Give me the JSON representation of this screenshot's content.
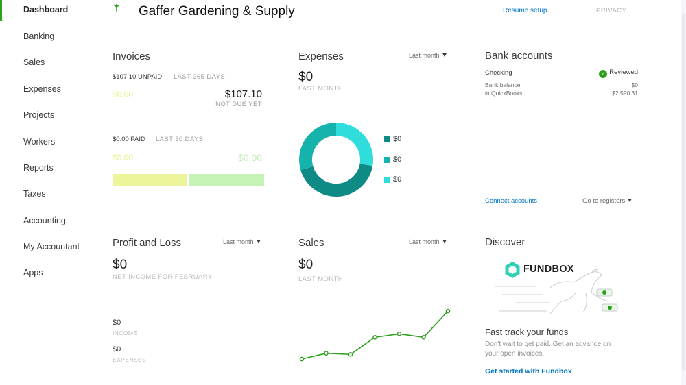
{
  "sidebar": {
    "items": [
      {
        "label": "Dashboard"
      },
      {
        "label": "Banking"
      },
      {
        "label": "Sales"
      },
      {
        "label": "Expenses"
      },
      {
        "label": "Projects"
      },
      {
        "label": "Workers"
      },
      {
        "label": "Reports"
      },
      {
        "label": "Taxes"
      },
      {
        "label": "Accounting"
      },
      {
        "label": "My Accountant"
      },
      {
        "label": "Apps"
      }
    ]
  },
  "header": {
    "company": "Gaffer Gardening & Supply",
    "resume_setup": "Resume setup",
    "privacy": "PRIVACY"
  },
  "invoices": {
    "title": "Invoices",
    "unpaid": "$107.10 UNPAID",
    "unpaid_period": "LAST 365 DAYS",
    "overdue_amount": "$0.00",
    "not_due_amount": "$107.10",
    "not_due_label": "NOT DUE YET",
    "paid": "$0.00 PAID",
    "paid_period": "LAST 30 DAYS",
    "not_deposited_amount": "$0.00",
    "deposited_amount": "$0.00"
  },
  "expenses": {
    "title": "Expenses",
    "period": "Last month",
    "amount": "$0",
    "caption": "LAST MONTH",
    "legend": [
      "$0",
      "$0",
      "$0"
    ]
  },
  "bank": {
    "title": "Bank accounts",
    "account": "Checking",
    "status": "Reviewed",
    "bank_balance_label": "Bank balance",
    "bank_balance": "$0",
    "qb_label": "in QuickBooks",
    "qb_balance": "$2,590.31",
    "connect": "Connect accounts",
    "registers": "Go to registers"
  },
  "pnl": {
    "title": "Profit and Loss",
    "period": "Last month",
    "amount": "$0",
    "caption": "NET INCOME FOR FEBRUARY",
    "income": "$0",
    "income_label": "INCOME",
    "expenses": "$0",
    "expenses_label": "EXPENSES"
  },
  "sales": {
    "title": "Sales",
    "period": "Last month",
    "amount": "$0",
    "caption": "LAST MONTH"
  },
  "discover": {
    "title": "Discover",
    "brand": "FUNDBOX",
    "headline": "Fast track your funds",
    "body_line1": "Don't wait to get paid. Get an advance on",
    "body_line2": "your open invoices.",
    "cta": "Get started with Fundbox"
  },
  "colors": {
    "accent_green": "#2ca01c",
    "link_blue": "#0077c5",
    "donut_dark": "#0f8b85",
    "donut_mid": "#16b3ad",
    "donut_light": "#2fdedc",
    "bar_yellow": "#edf59a",
    "bar_green": "#c6f3b6",
    "sales_line": "#2ca01c"
  },
  "chart_data": {
    "type": "line",
    "series": [
      {
        "values": [
          0,
          0.25,
          0.2,
          0.95,
          1.1,
          0.95,
          2.1
        ]
      }
    ]
  }
}
